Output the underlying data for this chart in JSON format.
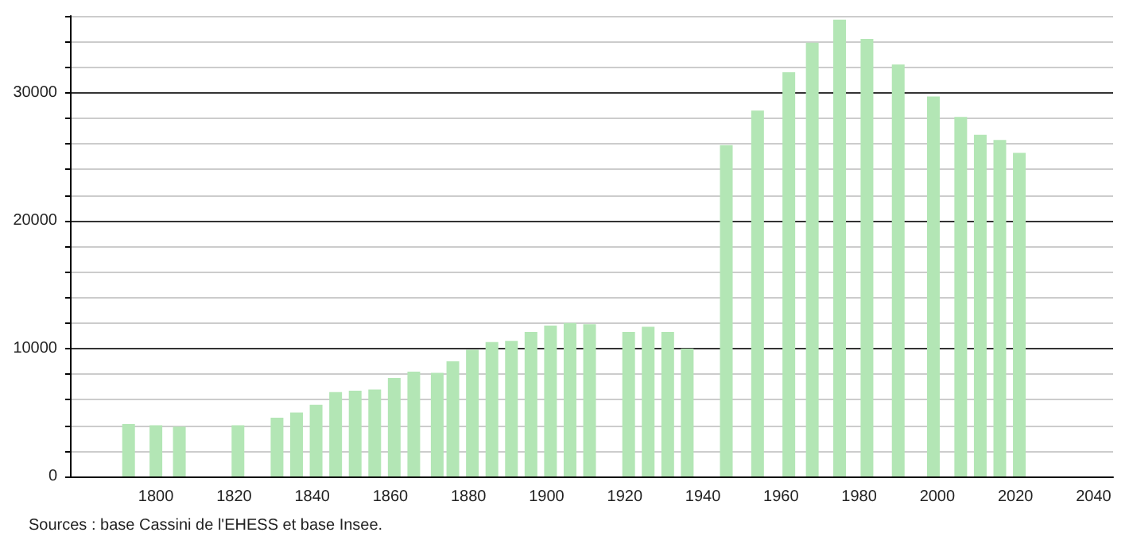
{
  "chart_data": {
    "type": "bar",
    "x": [
      1793,
      1800,
      1806,
      1821,
      1831,
      1836,
      1841,
      1846,
      1851,
      1856,
      1861,
      1866,
      1872,
      1876,
      1881,
      1886,
      1891,
      1896,
      1901,
      1906,
      1911,
      1921,
      1926,
      1931,
      1936,
      1946,
      1954,
      1962,
      1968,
      1975,
      1982,
      1990,
      1999,
      2006,
      2011,
      2016,
      2021
    ],
    "values": [
      4100,
      4000,
      3900,
      4000,
      4600,
      5000,
      5600,
      6600,
      6700,
      6800,
      7700,
      8200,
      8100,
      9000,
      9900,
      10500,
      10600,
      11300,
      11800,
      12000,
      11900,
      11300,
      11700,
      11300,
      10000,
      25900,
      28600,
      31600,
      33900,
      35700,
      34200,
      32200,
      29700,
      28100,
      26700,
      26300,
      25300
    ],
    "color": "#b3e6b5",
    "xlim": [
      1778,
      2045
    ],
    "xticks": [
      1800,
      1820,
      1840,
      1860,
      1880,
      1900,
      1920,
      1940,
      1960,
      1980,
      2000,
      2020,
      2040
    ],
    "ylim": [
      0,
      36000
    ],
    "yticks": [
      0,
      {
        "value": 2000,
        "label": null
      },
      {
        "value": 4000,
        "label": null
      },
      {
        "value": 6000,
        "label": null
      },
      {
        "value": 8000,
        "label": null
      },
      10000,
      {
        "value": 12000,
        "label": null
      },
      {
        "value": 14000,
        "label": null
      },
      {
        "value": 16000,
        "label": null
      },
      {
        "value": 18000,
        "label": null
      },
      20000,
      {
        "value": 22000,
        "label": null
      },
      {
        "value": 24000,
        "label": null
      },
      {
        "value": 26000,
        "label": null
      },
      {
        "value": 28000,
        "label": null
      },
      30000,
      {
        "value": 32000,
        "label": null
      },
      {
        "value": 34000,
        "label": null
      },
      {
        "value": 36000,
        "label": null
      }
    ],
    "grid": "y",
    "annotations": [
      "Sources : base Cassini de l'EHESS et base Insee."
    ]
  }
}
